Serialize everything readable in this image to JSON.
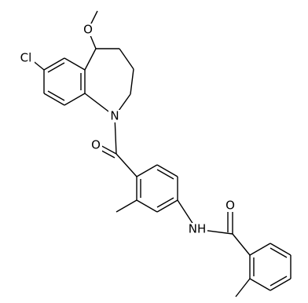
{
  "atoms": [
    {
      "label": "O"
    },
    {
      "label": "Cl"
    },
    {
      "label": "N"
    },
    {
      "label": "O"
    },
    {
      "label": "NH"
    },
    {
      "label": "O"
    }
  ]
}
